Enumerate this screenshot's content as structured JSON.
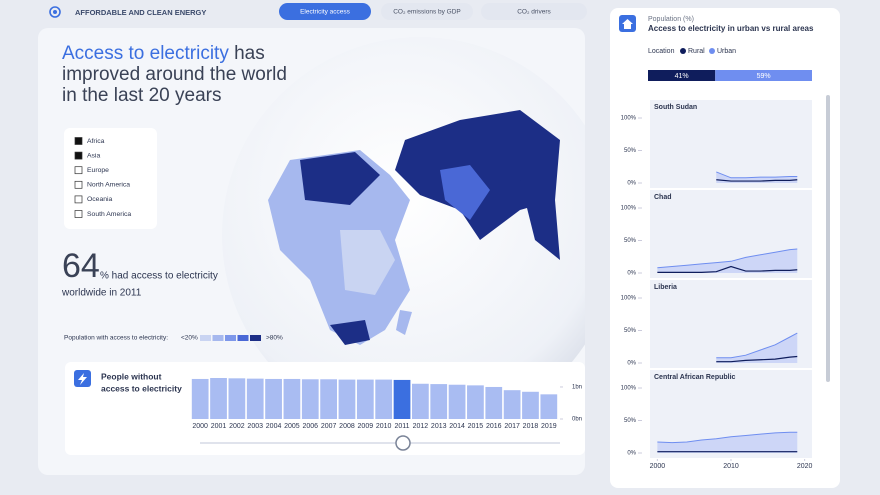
{
  "header": {
    "brand": "AFFORDABLE AND CLEAN ENERGY",
    "tabs": [
      "Electricity access",
      "CO₂ emissions by GDP",
      "CO₂ drivers"
    ],
    "active_tab": 0
  },
  "headline": {
    "highlight": "Access to electricity",
    "lines": [
      "has",
      "improved around the world",
      "in the last 20 years"
    ]
  },
  "region_filter": {
    "items": [
      "Africa",
      "Asia",
      "Europe",
      "North America",
      "Oceania",
      "South America"
    ],
    "checked": [
      true,
      true,
      false,
      false,
      false,
      false
    ]
  },
  "stat": {
    "value": 64,
    "lines": [
      "% had access to electricity",
      "worldwide in 2011"
    ]
  },
  "map_legend": {
    "label": "Population with access to electricity:",
    "low": "<20%",
    "high": ">80%",
    "colors": [
      "#c9d4f2",
      "#a6b8ee",
      "#7d97ea",
      "#4a68d6",
      "#1c2e86"
    ]
  },
  "people_chart": {
    "type": "bar",
    "title_lines": [
      "People without",
      "access to electricity"
    ],
    "categories": [
      "2000",
      "2001",
      "2002",
      "2003",
      "2004",
      "2005",
      "2006",
      "2007",
      "2008",
      "2009",
      "2010",
      "2011",
      "2012",
      "2013",
      "2014",
      "2015",
      "2016",
      "2017",
      "2018",
      "2019"
    ],
    "values": [
      1.25,
      1.28,
      1.27,
      1.26,
      1.25,
      1.25,
      1.24,
      1.24,
      1.23,
      1.23,
      1.23,
      1.22,
      1.1,
      1.09,
      1.07,
      1.05,
      1.0,
      0.9,
      0.85,
      0.77
    ],
    "ylim": [
      0,
      1.28
    ],
    "yticks": [
      {
        "value": 0,
        "label": "0bn"
      },
      {
        "value": 1,
        "label": "1bn"
      }
    ],
    "color": "#a9bcf2",
    "highlight_color": "#3b6fe0",
    "highlight": "2011"
  },
  "population_panel": {
    "label": "Population (%)",
    "title": "Access to electricity in urban vs rural areas",
    "location_label": "Location",
    "legend": [
      {
        "name": "Rural",
        "color": "#0f1d5c"
      },
      {
        "name": "Urban",
        "color": "#6f8ef0"
      }
    ],
    "split": {
      "values": [
        41,
        59
      ],
      "value_labels": [
        "41%",
        "59%"
      ]
    },
    "x": [
      2000,
      2002,
      2004,
      2006,
      2008,
      2010,
      2012,
      2014,
      2016,
      2018,
      2019
    ],
    "xlim": [
      1999,
      2021
    ],
    "xticks": [
      2000,
      2010,
      2020
    ],
    "ylim": [
      0,
      100
    ],
    "yticks": [
      {
        "value": 0,
        "label": "0%"
      },
      {
        "value": 50,
        "label": "50%"
      },
      {
        "value": 100,
        "label": "100%"
      }
    ],
    "charts": [
      {
        "name": "South Sudan",
        "rural": [
          null,
          null,
          null,
          null,
          5,
          3,
          3,
          3,
          4,
          4,
          5
        ],
        "urban": [
          null,
          null,
          null,
          null,
          17,
          8,
          8,
          9,
          9,
          10,
          10
        ]
      },
      {
        "name": "Chad",
        "rural": [
          1,
          1,
          1,
          1,
          2,
          10,
          3,
          3,
          4,
          4,
          5
        ],
        "urban": [
          8,
          10,
          12,
          14,
          16,
          18,
          24,
          28,
          32,
          36,
          37
        ]
      },
      {
        "name": "Liberia",
        "rural": [
          null,
          null,
          null,
          null,
          2,
          2,
          4,
          5,
          6,
          9,
          10
        ],
        "urban": [
          null,
          null,
          null,
          null,
          8,
          8,
          12,
          20,
          28,
          40,
          46
        ]
      },
      {
        "name": "Central African Republic",
        "rural": [
          2,
          2,
          2,
          2,
          2,
          2,
          2,
          2,
          2,
          2,
          2
        ],
        "urban": [
          17,
          16,
          17,
          20,
          22,
          25,
          27,
          29,
          31,
          32,
          32
        ]
      }
    ]
  }
}
